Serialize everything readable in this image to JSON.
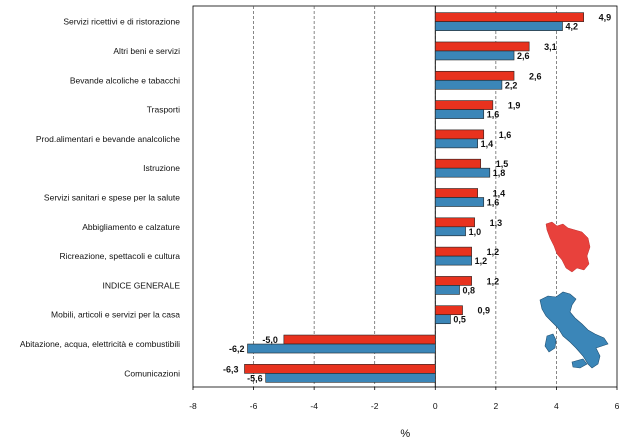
{
  "chart_data": {
    "type": "bar",
    "orientation": "horizontal",
    "categories": [
      "Servizi ricettivi e di ristorazione",
      "Altri beni e servizi",
      "Bevande alcoliche e tabacchi",
      "Trasporti",
      "Prod.alimentari e bevande analcoliche",
      "Istruzione",
      "Servizi sanitari e spese per la salute",
      "Abbigliamento e calzature",
      "Ricreazione, spettacoli e cultura",
      "INDICE GENERALE",
      "Mobili, articoli e servizi per la casa",
      "Abitazione, acqua, elettricità e combustibili",
      "Comunicazioni"
    ],
    "series": [
      {
        "values": [
          4.9,
          3.1,
          2.6,
          1.9,
          1.6,
          1.5,
          1.4,
          1.3,
          1.2,
          1.2,
          0.9,
          -5.0,
          -6.3
        ],
        "color": "#e8321e"
      },
      {
        "values": [
          4.2,
          2.6,
          2.2,
          1.6,
          1.4,
          1.8,
          1.6,
          1.0,
          1.2,
          0.8,
          0.5,
          -6.2,
          -5.6
        ],
        "color": "#3b86b8"
      }
    ],
    "value_labels": [
      [
        "4,9",
        "3,1",
        "2,6",
        "1,9",
        "1,6",
        "1,5",
        "1,4",
        "1,3",
        "1,2",
        "1,2",
        "0,9",
        "-5,0",
        "-6,3"
      ],
      [
        "4,2",
        "2,6",
        "2,2",
        "1,6",
        "1,4",
        "1,8",
        "1,6",
        "1,0",
        "1,2",
        "0,8",
        "0,5",
        "-6,2",
        "-5,6"
      ]
    ],
    "xticks": [
      -8,
      -6,
      -4,
      -2,
      0,
      2,
      4,
      6
    ],
    "xlim": [
      -8,
      6
    ],
    "xlabel": "%",
    "grid": "vertical dashed",
    "legend": "none",
    "decorations": [
      "tuscany-map-red",
      "italy-map-blue"
    ]
  }
}
